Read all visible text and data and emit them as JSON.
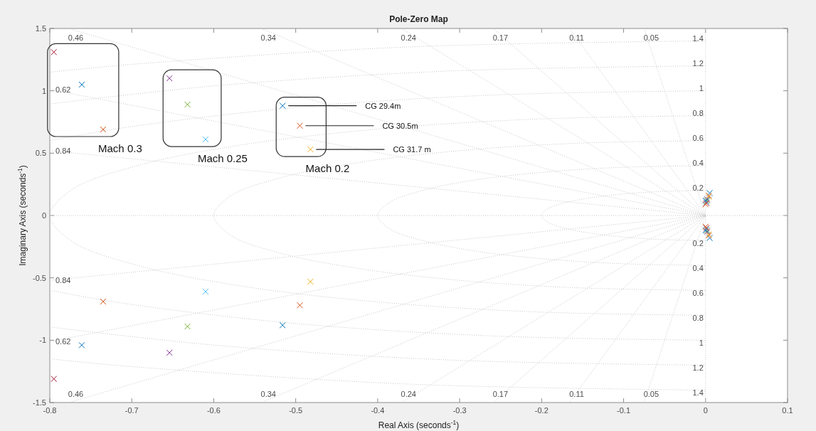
{
  "chart_data": {
    "type": "scatter",
    "title": "Pole-Zero Map",
    "xlabel": "Real Axis (seconds$^{-1}$)",
    "ylabel": "Imaginary Axis (seconds$^{-1}$)",
    "xlim": [
      -0.8,
      0.1
    ],
    "xticks": [
      -0.8,
      -0.7,
      -0.6,
      -0.5,
      -0.4,
      -0.3,
      -0.2,
      -0.1,
      0,
      0.1
    ],
    "ylim": [
      -1.5,
      1.5
    ],
    "yticks": [
      -1.5,
      -1,
      -0.5,
      0,
      0.5,
      1,
      1.5
    ],
    "series": [
      {
        "type": "line",
        "line_style": "dotted",
        "color": "#c8c8c8",
        "x": [
          -0.8,
          0.1
        ],
        "values": [
          0,
          0
        ]
      },
      {
        "type": "line",
        "line_style": "dotted",
        "color": "#c8c8c8",
        "x": [
          0,
          0
        ],
        "values": [
          -1.5,
          1.5
        ]
      },
      {
        "type": "line",
        "line_style": "dotted",
        "name": "0.46",
        "color": "#c8c8c8",
        "x": [
          -0.777,
          0,
          -0.777
        ],
        "values": [
          1.5,
          0,
          -1.5
        ]
      },
      {
        "type": "line",
        "line_style": "dotted",
        "name": "0.34",
        "color": "#c8c8c8",
        "x": [
          -0.542,
          0,
          -0.542
        ],
        "values": [
          1.5,
          0,
          -1.5
        ]
      },
      {
        "type": "line",
        "line_style": "dotted",
        "name": "0.24",
        "color": "#c8c8c8",
        "x": [
          -0.371,
          0,
          -0.371
        ],
        "values": [
          1.5,
          0,
          -1.5
        ]
      },
      {
        "type": "line",
        "line_style": "dotted",
        "name": "0.17",
        "color": "#c8c8c8",
        "x": [
          -0.259,
          0,
          -0.259
        ],
        "values": [
          1.5,
          0,
          -1.5
        ]
      },
      {
        "type": "line",
        "line_style": "dotted",
        "name": "0.11",
        "color": "#c8c8c8",
        "x": [
          -0.166,
          0,
          -0.166
        ],
        "values": [
          1.5,
          0,
          -1.5
        ]
      },
      {
        "type": "line",
        "line_style": "dotted",
        "name": "0.05",
        "color": "#c8c8c8",
        "x": [
          -0.075,
          0,
          -0.075
        ],
        "values": [
          1.5,
          0,
          -1.5
        ]
      },
      {
        "type": "line",
        "line_style": "dotted",
        "name": "0.62",
        "color": "#c8c8c8",
        "x": [
          -0.8,
          0,
          -0.8
        ],
        "values": [
          1.01,
          0,
          -1.01
        ]
      },
      {
        "type": "line",
        "line_style": "dotted",
        "name": "0.84",
        "color": "#c8c8c8",
        "x": [
          -0.8,
          0,
          -0.8
        ],
        "values": [
          0.52,
          0,
          -0.52
        ]
      },
      {
        "type": "line",
        "line_style": "dotted",
        "name": "0.2",
        "color": "#c8c8c8",
        "x": [
          0,
          -0.052,
          -0.1,
          -0.141,
          -0.173,
          -0.193,
          -0.2,
          -0.193,
          -0.173,
          -0.141,
          -0.1,
          -0.052,
          0
        ],
        "values": [
          0.2,
          0.193,
          0.173,
          0.141,
          0.1,
          0.052,
          0,
          -0.052,
          -0.1,
          -0.141,
          -0.173,
          -0.193,
          -0.2
        ]
      },
      {
        "type": "line",
        "line_style": "dotted",
        "name": "0.4",
        "color": "#c8c8c8",
        "x": [
          0,
          -0.104,
          -0.2,
          -0.283,
          -0.346,
          -0.386,
          -0.4,
          -0.386,
          -0.346,
          -0.283,
          -0.2,
          -0.104,
          0
        ],
        "values": [
          0.4,
          0.386,
          0.346,
          0.283,
          0.2,
          0.104,
          0,
          -0.104,
          -0.2,
          -0.283,
          -0.346,
          -0.386,
          -0.4
        ]
      },
      {
        "type": "line",
        "line_style": "dotted",
        "name": "0.6",
        "color": "#c8c8c8",
        "x": [
          0,
          -0.155,
          -0.3,
          -0.424,
          -0.52,
          -0.58,
          -0.6,
          -0.58,
          -0.52,
          -0.424,
          -0.3,
          -0.155,
          0
        ],
        "values": [
          0.6,
          0.58,
          0.52,
          0.424,
          0.3,
          0.155,
          0,
          -0.155,
          -0.3,
          -0.424,
          -0.52,
          -0.58,
          -0.6
        ]
      },
      {
        "type": "line",
        "line_style": "dotted",
        "name": "0.8",
        "color": "#c8c8c8",
        "x": [
          0,
          -0.207,
          -0.4,
          -0.566,
          -0.693,
          -0.773,
          -0.8,
          -0.773,
          -0.693,
          -0.566,
          -0.4,
          -0.207,
          0
        ],
        "values": [
          0.8,
          0.773,
          0.693,
          0.566,
          0.4,
          0.207,
          0,
          -0.207,
          -0.4,
          -0.566,
          -0.693,
          -0.773,
          -0.8
        ]
      },
      {
        "type": "line",
        "line_style": "dotted",
        "name": "1",
        "color": "#c8c8c8",
        "x": [
          0,
          -0.259,
          -0.5,
          -0.707,
          -0.8,
          null,
          -0.8,
          -0.707,
          -0.5,
          -0.259,
          0
        ],
        "values": [
          1,
          0.966,
          0.866,
          0.707,
          0.6,
          null,
          -0.6,
          -0.707,
          -0.866,
          -0.966,
          -1
        ]
      },
      {
        "type": "line",
        "line_style": "dotted",
        "name": "1.2",
        "color": "#c8c8c8",
        "x": [
          0,
          -0.311,
          -0.6,
          -0.8,
          null,
          -0.8,
          -0.6,
          -0.311,
          0
        ],
        "values": [
          1.2,
          1.159,
          1.039,
          0.894,
          null,
          -0.894,
          -1.039,
          -1.159,
          -1.2
        ]
      },
      {
        "type": "line",
        "line_style": "dotted",
        "name": "1.4",
        "color": "#c8c8c8",
        "x": [
          0,
          -0.362,
          -0.7,
          -0.8,
          null,
          -0.8,
          -0.7,
          -0.362,
          0
        ],
        "values": [
          1.4,
          1.352,
          1.212,
          1.149,
          null,
          -1.149,
          -1.212,
          -1.352,
          -1.4
        ]
      },
      {
        "marker": "cross",
        "color": "#0072bd",
        "x": [
          -0.516,
          -0.516,
          0.005,
          0.005
        ],
        "values": [
          0.88,
          -0.88,
          0.18,
          -0.18
        ]
      },
      {
        "marker": "cross",
        "color": "#d95319",
        "x": [
          -0.495,
          -0.495,
          0.004,
          0.004
        ],
        "values": [
          0.72,
          -0.72,
          0.16,
          -0.16
        ]
      },
      {
        "marker": "cross",
        "color": "#edb120",
        "x": [
          -0.482,
          -0.482,
          0.004,
          0.004
        ],
        "values": [
          0.53,
          -0.53,
          0.15,
          -0.15
        ]
      },
      {
        "marker": "cross",
        "color": "#7e2f8e",
        "x": [
          -0.654,
          -0.654,
          0.002,
          0.002
        ],
        "values": [
          1.1,
          -1.1,
          0.13,
          -0.13
        ]
      },
      {
        "marker": "cross",
        "color": "#77ac30",
        "x": [
          -0.632,
          -0.632,
          0.002,
          0.002
        ],
        "values": [
          0.89,
          -0.89,
          0.12,
          -0.12
        ]
      },
      {
        "marker": "cross",
        "color": "#4dbeee",
        "x": [
          -0.61,
          -0.61,
          0.001,
          0.001
        ],
        "values": [
          0.61,
          -0.61,
          0.11,
          -0.11
        ]
      },
      {
        "marker": "cross",
        "color": "#a2142f",
        "x": [
          -0.795,
          -0.795,
          0.001,
          0.001
        ],
        "values": [
          1.31,
          -1.31,
          0.1,
          -0.1
        ]
      },
      {
        "marker": "cross",
        "color": "#0072bd",
        "x": [
          -0.761,
          -0.761,
          0,
          0
        ],
        "values": [
          1.05,
          -1.04,
          0.12,
          -0.12
        ]
      },
      {
        "marker": "cross",
        "color": "#d95319",
        "x": [
          -0.735,
          -0.735,
          0,
          0
        ],
        "values": [
          0.69,
          -0.69,
          0.09,
          -0.09
        ]
      }
    ],
    "annotations": [
      {
        "text": "CG 29.4m",
        "x": -0.516,
        "y": 0.88
      },
      {
        "text": "CG 30.5m",
        "x": -0.495,
        "y": 0.72
      },
      {
        "text": "CG 31.7 m",
        "x": -0.482,
        "y": 0.53
      },
      "Mach 0.2",
      "Mach 0.25",
      "Mach 0.3"
    ]
  }
}
